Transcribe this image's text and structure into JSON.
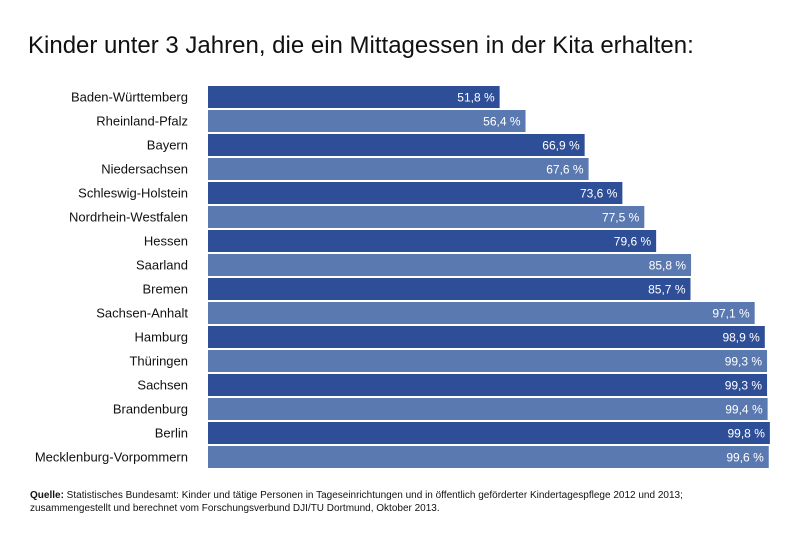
{
  "chart_data": {
    "type": "bar",
    "orientation": "horizontal",
    "title": "Kinder unter 3 Jahren, die ein Mittagessen in der Kita erhalten:",
    "categories": [
      "Baden-Württemberg",
      "Rheinland-Pfalz",
      "Bayern",
      "Niedersachsen",
      "Schleswig-Holstein",
      "Nordrhein-Westfalen",
      "Hessen",
      "Saarland",
      "Bremen",
      "Sachsen-Anhalt",
      "Hamburg",
      "Thüringen",
      "Sachsen",
      "Brandenburg",
      "Berlin",
      "Mecklenburg-Vorpommern"
    ],
    "values": [
      51.8,
      56.4,
      66.9,
      67.6,
      73.6,
      77.5,
      79.6,
      85.8,
      85.7,
      97.1,
      98.9,
      99.3,
      99.3,
      99.4,
      99.8,
      99.6
    ],
    "value_labels": [
      "51,8 %",
      "56,4 %",
      "66,9 %",
      "67,6 %",
      "73,6 %",
      "77,5 %",
      "79,6 %",
      "85,8 %",
      "85,7 %",
      "97,1 %",
      "98,9 %",
      "99,3 %",
      "99,3 %",
      "99,4 %",
      "99,8 %",
      "99,6 %"
    ],
    "bar_colors": [
      "#2e4f98",
      "#5b79b1",
      "#2e4f98",
      "#5b79b1",
      "#2e4f98",
      "#5b79b1",
      "#2e4f98",
      "#5b79b1",
      "#2e4f98",
      "#5b79b1",
      "#2e4f98",
      "#5b79b1",
      "#2e4f98",
      "#5b79b1",
      "#2e4f98",
      "#5b79b1"
    ],
    "xlim": [
      0,
      100
    ],
    "grid": false
  },
  "source": {
    "label": "Quelle:",
    "line1": " Statistisches Bundesamt: Kinder und tätige Personen in Tageseinrichtungen und in öffentlich geförderter Kindertagespflege 2012 und 2013;",
    "line2": "zusammengestellt und berechnet vom Forschungsverbund DJI/TU Dortmund, Oktober 2013."
  }
}
